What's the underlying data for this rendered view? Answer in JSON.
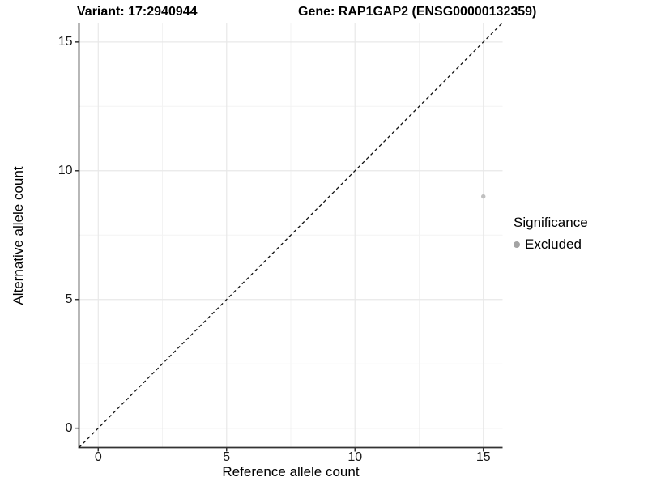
{
  "chart_data": {
    "type": "scatter",
    "titles": {
      "variant": "Variant: 17:2940944",
      "gene": "Gene: RAP1GAP2 (ENSG00000132359)"
    },
    "xlabel": "Reference allele count",
    "ylabel": "Alternative allele count",
    "x_ticks": [
      0,
      5,
      10,
      15
    ],
    "y_ticks": [
      0,
      5,
      10,
      15
    ],
    "x_minor_ticks": [
      2.5,
      7.5,
      12.5
    ],
    "y_minor_ticks": [
      2.5,
      7.5,
      12.5
    ],
    "xlim": [
      -0.75,
      15.75
    ],
    "ylim": [
      -0.75,
      15.75
    ],
    "grid": "major+minor",
    "points": [
      {
        "x": 15,
        "y": 9,
        "significance": "Excluded",
        "color": "#c0c0c0"
      }
    ],
    "reference_line": {
      "kind": "identity y=x",
      "style": "dashed",
      "color": "#111111"
    },
    "legend": {
      "title": "Significance",
      "position": "right",
      "entries": [
        {
          "label": "Excluded",
          "marker": "circle",
          "color": "#a4a4a4"
        }
      ]
    }
  },
  "colors": {
    "background": "#ffffff",
    "axis_line": "#333333",
    "tick_mark": "#333333",
    "grid_major": "#e8e8e8",
    "grid_minor": "#f3f3f3",
    "tick_text": "#1a1a1a"
  }
}
